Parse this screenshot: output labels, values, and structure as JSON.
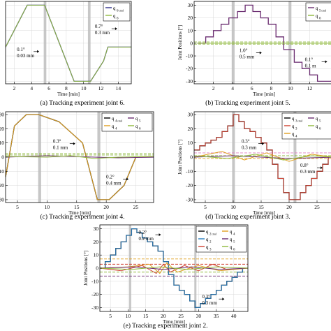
{
  "chart_data": [
    {
      "type": "line",
      "caption": "(a) Tracking experiment joint 6.",
      "xlabel": "Time [min]",
      "ylabel": "",
      "xlim": [
        1,
        15.5
      ],
      "ylim": [
        -32,
        33
      ],
      "xticks": [
        "2",
        "4",
        "6",
        "8",
        "10",
        "12",
        "14"
      ],
      "yticks": [],
      "legend": [
        {
          "label": "q",
          "sub": "6",
          "sub2": "cmd",
          "color": "#2c2c8a"
        },
        {
          "label": "q",
          "sub": "6",
          "sub2": "",
          "color": "#8fb93c"
        }
      ],
      "legend_position": "top-right",
      "shaded_x": [
        [
          5.4,
          5.7
        ],
        [
          10.5,
          10.8
        ]
      ],
      "dashed_y": [],
      "annotations": [
        {
          "lines": [
            "0.1°",
            "0.03 mm"
          ],
          "at": [
            2.3,
            -6
          ]
        },
        {
          "lines": [
            "0.7°",
            "0.3 mm"
          ],
          "at": [
            11.3,
            12
          ]
        }
      ],
      "series": [
        {
          "name": "q_6_cmd",
          "color": "#2c2c8a",
          "step": false,
          "x": [
            1,
            3.5,
            5.5,
            8.9,
            10.8,
            12.3,
            12.8,
            15.5
          ],
          "y": [
            -3,
            30,
            30,
            -30,
            -30,
            -14,
            -3,
            -3
          ]
        },
        {
          "name": "q_6",
          "color": "#8fb93c",
          "step": false,
          "x": [
            1,
            3.5,
            5.5,
            8.9,
            10.8,
            12.3,
            12.8,
            15.5
          ],
          "y": [
            -3,
            30,
            30,
            -30,
            -30,
            -14,
            -3,
            -3
          ]
        }
      ]
    },
    {
      "type": "line",
      "caption": "(b) Tracking experiment joint 5.",
      "xlabel": "Time [min]",
      "ylabel": "Joint Positions [°]",
      "xlim": [
        0,
        14.5
      ],
      "ylim": [
        -32,
        33
      ],
      "xticks": [
        "2",
        "4",
        "6",
        "8",
        "10",
        "12"
      ],
      "yticks": [
        "30",
        "20",
        "10",
        "0",
        "-10",
        "-20",
        "-30"
      ],
      "legend": [
        {
          "label": "q",
          "sub": "5",
          "sub2": "cmd",
          "color": "#6a2c70"
        },
        {
          "label": "q",
          "sub": "6",
          "sub2": "",
          "color": "#8fb93c"
        }
      ],
      "legend_position": "top-right",
      "shaded_x": [
        [
          3.9,
          4.2
        ],
        [
          9.8,
          10.1
        ]
      ],
      "dashed_y": [
        {
          "y": 1.0,
          "color": "#8fb93c"
        },
        {
          "y": -0.7,
          "color": "#8fb93c"
        }
      ],
      "annotations": [
        {
          "lines": [
            "1.0°",
            "0.5 mm"
          ],
          "at": [
            4.7,
            -7
          ]
        },
        {
          "lines": [
            "0.1°",
            "0.1 m"
          ],
          "at": [
            11.5,
            -14
          ]
        }
      ],
      "series": [
        {
          "name": "q_5_cmd",
          "color": "#6a2c70",
          "step": true,
          "x": [
            0.4,
            1.2,
            2.0,
            2.8,
            3.6,
            4.5,
            5.3,
            6.1,
            6.9,
            7.7,
            8.5,
            9.3,
            10.4,
            11.2,
            12.0,
            12.8
          ],
          "y": [
            0,
            5,
            10,
            15,
            20,
            25,
            30,
            25,
            20,
            15,
            5,
            -5,
            -15,
            -20,
            -25,
            -30
          ]
        },
        {
          "name": "q_6",
          "color": "#8fb93c",
          "step": false,
          "x": [
            0.3,
            14.3
          ],
          "y": [
            0,
            0
          ]
        }
      ]
    },
    {
      "type": "line",
      "caption": "(c) Tracking experiment joint 4.",
      "xlabel": "Time [min]",
      "ylabel": "",
      "xlim": [
        3,
        28
      ],
      "ylim": [
        -32,
        32
      ],
      "xticks": [
        "5",
        "10",
        "15",
        "20",
        "25"
      ],
      "yticks": [
        "30",
        "20",
        "10",
        "0",
        "-10",
        "-20",
        "-30"
      ],
      "legend": [
        {
          "label": "q",
          "sub": "4",
          "sub2": "cmd",
          "color": "#000000"
        },
        {
          "label": "q",
          "sub": "5",
          "sub2": "",
          "color": "#6a2c70"
        },
        {
          "label": "q",
          "sub": "4",
          "sub2": "",
          "color": "#e0a020"
        },
        {
          "label": "q",
          "sub": "6",
          "sub2": "",
          "color": "#8fb93c"
        }
      ],
      "legend_position": "top-right",
      "shaded_x": [
        [
          8.5,
          9.0
        ],
        [
          18.5,
          19.0
        ]
      ],
      "dashed_y": [
        {
          "y": 2.5,
          "color": "#8fb93c"
        },
        {
          "y": 1.5,
          "color": "#8fb93c"
        }
      ],
      "annotations": [
        {
          "lines": [
            "0.3°",
            "0.1 mm"
          ],
          "at": [
            11,
            10
          ]
        },
        {
          "lines": [
            "0.2°",
            "0.4 mm"
          ],
          "at": [
            20,
            -15
          ]
        }
      ],
      "series": [
        {
          "name": "q_4_cmd",
          "color": "#000000",
          "step": false,
          "x": [
            3,
            4.5,
            6.5,
            8.6,
            12,
            16,
            18.5,
            20.5,
            23,
            25,
            28
          ],
          "y": [
            -14,
            22,
            30,
            30,
            25,
            10,
            -30,
            -30,
            -20,
            0,
            0
          ]
        },
        {
          "name": "q_4",
          "color": "#e0a020",
          "step": false,
          "x": [
            3,
            4.5,
            6.5,
            8.6,
            12,
            16,
            18.5,
            20.5,
            23,
            25,
            28
          ],
          "y": [
            -14,
            22,
            30,
            30,
            25,
            10,
            -30,
            -30,
            -20,
            0,
            0
          ]
        },
        {
          "name": "q_5",
          "color": "#6a2c70",
          "step": false,
          "x": [
            3,
            10,
            14,
            18,
            22,
            28
          ],
          "y": [
            0,
            1,
            0.5,
            0,
            -0.5,
            0
          ]
        },
        {
          "name": "q_6",
          "color": "#8fb93c",
          "step": false,
          "x": [
            3,
            10,
            14,
            18,
            22,
            28
          ],
          "y": [
            0.5,
            0,
            1,
            -1,
            0,
            0.5
          ]
        }
      ]
    },
    {
      "type": "line",
      "caption": "(d) Tracking experiment joint 3.",
      "xlabel": "Time [min]",
      "ylabel": "Joint Positions [°]",
      "xlim": [
        3,
        28
      ],
      "ylim": [
        -32,
        32
      ],
      "xticks": [
        "5",
        "10",
        "15",
        "20",
        "25"
      ],
      "yticks": [
        "30",
        "20",
        "10",
        "0",
        "-10",
        "-20",
        "-30"
      ],
      "legend": [
        {
          "label": "q",
          "sub": "3",
          "sub2": "cmd",
          "color": "#000000"
        },
        {
          "label": "q",
          "sub": "5",
          "sub2": "",
          "color": "#6a2c70"
        },
        {
          "label": "q",
          "sub": "3",
          "sub2": "",
          "color": "#d04030"
        },
        {
          "label": "q",
          "sub": "6",
          "sub2": "",
          "color": "#8fb93c"
        },
        {
          "label": "q",
          "sub": "4",
          "sub2": "",
          "color": "#e0a020"
        }
      ],
      "legend_position": "top-right",
      "shaded_x": [
        [
          9.8,
          10.3
        ],
        [
          20.8,
          21.3
        ]
      ],
      "dashed_y": [
        {
          "y": 3,
          "color": "#e080c0"
        },
        {
          "y": 1,
          "color": "#8fb93c"
        },
        {
          "y": -1,
          "color": "#e0a020"
        }
      ],
      "annotations": [
        {
          "lines": [
            "0.3°",
            "0.3 mm"
          ],
          "at": [
            11.5,
            10
          ]
        },
        {
          "lines": [
            "0.8°",
            "0.3 mm"
          ],
          "at": [
            22,
            -7
          ]
        }
      ],
      "series": [
        {
          "name": "q_3_cmd",
          "color": "#000000",
          "step": true,
          "x": [
            3,
            4,
            5,
            6,
            7,
            8,
            9,
            10,
            11,
            12,
            13,
            14,
            15,
            16,
            17,
            18,
            19,
            20,
            21,
            22,
            23,
            24,
            25,
            26,
            27
          ],
          "y": [
            5,
            8,
            10,
            12,
            14,
            18,
            22,
            30,
            25,
            20,
            18,
            14,
            10,
            5,
            -5,
            -15,
            -25,
            -30,
            -30,
            -25,
            -20,
            -15,
            -10,
            -5,
            0
          ]
        },
        {
          "name": "q_3",
          "color": "#d04030",
          "step": true,
          "x": [
            3,
            4,
            5,
            6,
            7,
            8,
            9,
            10,
            11,
            12,
            13,
            14,
            15,
            16,
            17,
            18,
            19,
            20,
            21,
            22,
            23,
            24,
            25,
            26,
            27
          ],
          "y": [
            5,
            8,
            10,
            12,
            14,
            18,
            22,
            30,
            25,
            20,
            18,
            14,
            10,
            5,
            -5,
            -15,
            -25,
            -30,
            -30,
            -25,
            -20,
            -15,
            -10,
            -5,
            0
          ]
        },
        {
          "name": "q_4",
          "color": "#e0a020",
          "step": false,
          "x": [
            3,
            8,
            12,
            16,
            20,
            24,
            28
          ],
          "y": [
            0,
            4,
            -2,
            3,
            -3,
            2,
            0
          ]
        },
        {
          "name": "q_5",
          "color": "#6a2c70",
          "step": false,
          "x": [
            3,
            10,
            15,
            20,
            28
          ],
          "y": [
            0,
            1,
            0,
            -1,
            0
          ]
        },
        {
          "name": "q_6",
          "color": "#8fb93c",
          "step": false,
          "x": [
            3,
            9,
            14,
            19,
            24,
            28
          ],
          "y": [
            1,
            -1,
            2,
            -2,
            1,
            0
          ]
        }
      ]
    },
    {
      "type": "line",
      "caption": "(e) Tracking experiment joint 2.",
      "xlabel": "Time [min]",
      "ylabel": "Joint Positions [°]",
      "xlim": [
        2,
        44
      ],
      "ylim": [
        -33,
        33
      ],
      "xticks": [
        "5",
        "10",
        "15",
        "20",
        "25",
        "30",
        "35",
        "40"
      ],
      "yticks": [
        "30",
        "20",
        "10",
        "0",
        "-10",
        "-20",
        "-30"
      ],
      "legend": [
        {
          "label": "q",
          "sub": "2",
          "sub2": "cmd",
          "color": "#000000"
        },
        {
          "label": "q",
          "sub": "4",
          "sub2": "",
          "color": "#e0a020"
        },
        {
          "label": "q",
          "sub": "2",
          "sub2": "",
          "color": "#2a7fc0"
        },
        {
          "label": "q",
          "sub": "5",
          "sub2": "",
          "color": "#6a2c70"
        },
        {
          "label": "q",
          "sub": "3",
          "sub2": "",
          "color": "#d04030"
        },
        {
          "label": "q",
          "sub": "6",
          "sub2": "",
          "color": "#8fb93c"
        }
      ],
      "legend_position": "top-right",
      "shaded_x": [
        [
          10.3,
          10.9
        ],
        [
          28.8,
          29.4
        ]
      ],
      "dashed_y": [
        {
          "y": 7,
          "color": "#e0a020"
        },
        {
          "y": 3,
          "color": "#d04030"
        },
        {
          "y": -3,
          "color": "#8fb93c"
        },
        {
          "y": -6,
          "color": "#6a2c70"
        }
      ],
      "annotations": [
        {
          "lines": [
            "0.2°",
            "0.2 mm"
          ],
          "at": [
            13,
            26
          ]
        },
        {
          "lines": [
            "0.3°",
            "0.3 mm"
          ],
          "at": [
            31,
            -23
          ]
        }
      ],
      "series": [
        {
          "name": "q_2_cmd",
          "color": "#000000",
          "step": true,
          "x": [
            2,
            3.5,
            5,
            6.5,
            8,
            9.5,
            11,
            12.5,
            14,
            15.5,
            17,
            18.5,
            20,
            21.5,
            23,
            24.5,
            26,
            27.5,
            29,
            30.5,
            32,
            33.5,
            35,
            36.5,
            38,
            39.5,
            41,
            42.5
          ],
          "y": [
            0,
            5,
            10,
            15,
            20,
            25,
            30,
            27,
            23,
            20,
            17,
            13,
            5,
            -5,
            -13,
            -17,
            -20,
            -25,
            -30,
            -27,
            -23,
            -20,
            -17,
            -13,
            -10,
            -7,
            -3,
            0
          ]
        },
        {
          "name": "q_2",
          "color": "#2a7fc0",
          "step": true,
          "x": [
            2,
            3.5,
            5,
            6.5,
            8,
            9.5,
            11,
            12.5,
            14,
            15.5,
            17,
            18.5,
            20,
            21.5,
            23,
            24.5,
            26,
            27.5,
            29,
            30.5,
            32,
            33.5,
            35,
            36.5,
            38,
            39.5,
            41,
            42.5
          ],
          "y": [
            0,
            5,
            10,
            15,
            20,
            25,
            30,
            27,
            23,
            20,
            17,
            13,
            5,
            -5,
            -13,
            -17,
            -20,
            -25,
            -30,
            -27,
            -23,
            -20,
            -17,
            -13,
            -10,
            -7,
            -3,
            0
          ]
        },
        {
          "name": "q_3",
          "color": "#d04030",
          "step": false,
          "x": [
            2,
            8,
            14,
            18,
            20,
            22,
            26,
            30,
            34,
            38,
            44
          ],
          "y": [
            0,
            -2,
            2,
            -4,
            3,
            -3,
            2,
            -2,
            3,
            -1,
            0
          ]
        },
        {
          "name": "q_4",
          "color": "#e0a020",
          "step": false,
          "x": [
            2,
            10,
            16,
            19,
            21,
            24,
            30,
            36,
            44
          ],
          "y": [
            0,
            1,
            3,
            -4,
            4,
            -3,
            2,
            -2,
            0
          ]
        },
        {
          "name": "q_5",
          "color": "#6a2c70",
          "step": false,
          "x": [
            2,
            12,
            20,
            28,
            36,
            44
          ],
          "y": [
            0,
            1,
            -1,
            1,
            -1,
            0
          ]
        },
        {
          "name": "q_6",
          "color": "#8fb93c",
          "step": false,
          "x": [
            2,
            11,
            19,
            27,
            35,
            44
          ],
          "y": [
            0,
            -1,
            1,
            -1,
            1,
            0
          ]
        }
      ]
    }
  ]
}
